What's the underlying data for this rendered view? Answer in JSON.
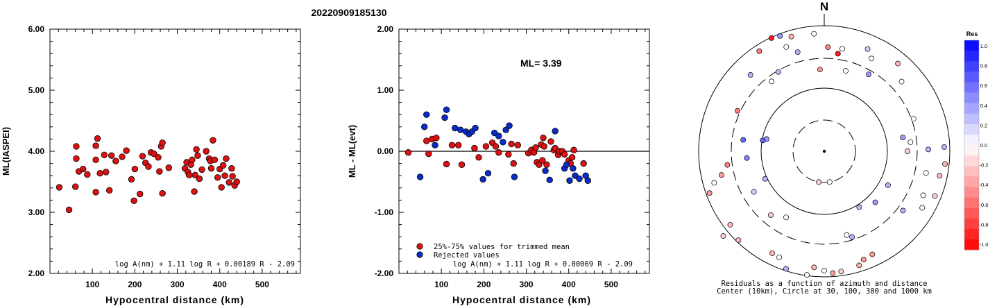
{
  "title": "20220909185130",
  "chart_data": [
    {
      "type": "scatter",
      "name": "ml-vs-distance",
      "xlabel": "Hypocentral distance (km)",
      "ylabel": "ML(IASPEI)",
      "xlim": [
        0,
        590
      ],
      "ylim": [
        2.0,
        6.0
      ],
      "xticks": [
        "100",
        "200",
        "300",
        "400",
        "500"
      ],
      "yticks": [
        "2.00",
        "3.00",
        "4.00",
        "5.00",
        "6.00"
      ],
      "formula": "log A(nm) + 1.11 log R + 0.00189 R - 2.09",
      "points": [
        [
          22,
          3.41
        ],
        [
          45,
          3.04
        ],
        [
          60,
          3.42
        ],
        [
          62,
          3.88
        ],
        [
          62,
          4.08
        ],
        [
          68,
          3.67
        ],
        [
          78,
          3.71
        ],
        [
          88,
          3.62
        ],
        [
          108,
          3.33
        ],
        [
          108,
          3.86
        ],
        [
          108,
          4.09
        ],
        [
          112,
          4.21
        ],
        [
          118,
          3.64
        ],
        [
          128,
          3.94
        ],
        [
          132,
          3.66
        ],
        [
          140,
          3.36
        ],
        [
          145,
          3.93
        ],
        [
          155,
          3.84
        ],
        [
          170,
          3.91
        ],
        [
          180,
          4.01
        ],
        [
          192,
          3.54
        ],
        [
          198,
          3.19
        ],
        [
          200,
          3.71
        ],
        [
          212,
          3.3
        ],
        [
          218,
          3.92
        ],
        [
          225,
          3.81
        ],
        [
          232,
          3.75
        ],
        [
          238,
          3.98
        ],
        [
          245,
          3.96
        ],
        [
          255,
          3.9
        ],
        [
          258,
          3.67
        ],
        [
          262,
          4.08
        ],
        [
          265,
          4.14
        ],
        [
          265,
          3.31
        ],
        [
          280,
          3.73
        ],
        [
          318,
          3.72
        ],
        [
          322,
          3.82
        ],
        [
          325,
          3.66
        ],
        [
          328,
          3.61
        ],
        [
          332,
          3.78
        ],
        [
          335,
          3.86
        ],
        [
          340,
          3.34
        ],
        [
          342,
          3.61
        ],
        [
          345,
          4.03
        ],
        [
          348,
          3.93
        ],
        [
          352,
          3.55
        ],
        [
          358,
          3.7
        ],
        [
          368,
          4.0
        ],
        [
          375,
          3.88
        ],
        [
          378,
          3.84
        ],
        [
          380,
          3.72
        ],
        [
          384,
          4.18
        ],
        [
          388,
          3.86
        ],
        [
          395,
          3.57
        ],
        [
          400,
          3.71
        ],
        [
          404,
          3.41
        ],
        [
          408,
          3.77
        ],
        [
          412,
          3.6
        ],
        [
          415,
          3.88
        ],
        [
          422,
          3.49
        ],
        [
          428,
          3.72
        ],
        [
          430,
          3.59
        ],
        [
          435,
          3.44
        ],
        [
          440,
          3.5
        ]
      ]
    },
    {
      "type": "scatter",
      "name": "residual-vs-distance",
      "xlabel": "Hypocentral distance (km)",
      "ylabel": "ML - ML(evt)",
      "xlim": [
        0,
        590
      ],
      "ylim": [
        -2.0,
        2.0
      ],
      "xticks": [
        "100",
        "200",
        "300",
        "400",
        "500"
      ],
      "yticks": [
        "-2.00",
        "-1.00",
        "0.00",
        "1.00",
        "2.00"
      ],
      "annotation": "ML= 3.39",
      "formula": "log A(nm) + 1.11 log R + 0.00069 R - 2.09",
      "legend": [
        "25%-75% values for trimmed mean",
        "Rejected values"
      ],
      "series": [
        {
          "name": "25%-75% values for trimmed mean",
          "color": "#dd1111",
          "points": [
            [
              22,
              -0.02
            ],
            [
              65,
              0.17
            ],
            [
              70,
              -0.04
            ],
            [
              78,
              0.2
            ],
            [
              88,
              0.22
            ],
            [
              112,
              -0.21
            ],
            [
              125,
              0.1
            ],
            [
              140,
              0.1
            ],
            [
              148,
              -0.22
            ],
            [
              178,
              0.05
            ],
            [
              188,
              -0.1
            ],
            [
              205,
              0.08
            ],
            [
              220,
              0.14
            ],
            [
              228,
              0.08
            ],
            [
              235,
              -0.02
            ],
            [
              258,
              -0.05
            ],
            [
              265,
              0.12
            ],
            [
              270,
              -0.2
            ],
            [
              280,
              0.1
            ],
            [
              305,
              -0.03
            ],
            [
              312,
              0.02
            ],
            [
              318,
              -0.02
            ],
            [
              322,
              0.06
            ],
            [
              325,
              -0.18
            ],
            [
              330,
              -0.22
            ],
            [
              335,
              0.11
            ],
            [
              338,
              -0.15
            ],
            [
              340,
              0.22
            ],
            [
              342,
              0.08
            ],
            [
              348,
              -0.22
            ],
            [
              358,
              0.16
            ],
            [
              365,
              0.02
            ],
            [
              368,
              0.05
            ],
            [
              375,
              -0.06
            ],
            [
              378,
              0.0
            ],
            [
              385,
              0.0
            ],
            [
              390,
              -0.05
            ],
            [
              400,
              -0.15
            ],
            [
              404,
              -0.2
            ],
            [
              408,
              -0.1
            ],
            [
              412,
              0.02
            ],
            [
              435,
              -0.2
            ]
          ]
        },
        {
          "name": "Rejected values",
          "color": "#0b2cc8",
          "points": [
            [
              50,
              -0.42
            ],
            [
              60,
              0.4
            ],
            [
              65,
              0.6
            ],
            [
              85,
              0.1
            ],
            [
              108,
              0.55
            ],
            [
              112,
              0.68
            ],
            [
              132,
              0.38
            ],
            [
              145,
              0.35
            ],
            [
              158,
              0.32
            ],
            [
              165,
              0.28
            ],
            [
              172,
              0.32
            ],
            [
              180,
              0.38
            ],
            [
              198,
              -0.46
            ],
            [
              210,
              -0.36
            ],
            [
              225,
              0.3
            ],
            [
              235,
              0.25
            ],
            [
              245,
              0.15
            ],
            [
              252,
              0.35
            ],
            [
              260,
              0.42
            ],
            [
              272,
              -0.42
            ],
            [
              345,
              -0.32
            ],
            [
              355,
              -0.47
            ],
            [
              368,
              0.33
            ],
            [
              390,
              -0.28
            ],
            [
              395,
              -0.22
            ],
            [
              402,
              -0.48
            ],
            [
              410,
              -0.28
            ],
            [
              415,
              -0.4
            ],
            [
              425,
              -0.45
            ],
            [
              440,
              -0.4
            ],
            [
              445,
              -0.48
            ]
          ]
        }
      ]
    },
    {
      "type": "scatter",
      "name": "azimuth-distance",
      "north_label": "N",
      "caption": [
        "Residuals as a function of azimuth and distance",
        "Center (10km), Circle at 30, 100, 300 and 1000 km"
      ],
      "colorbar": {
        "title": "Res",
        "ticks": [
          "1.0",
          "0.8",
          "0.6",
          "0.4",
          "0.2",
          "0.0",
          "-0.2",
          "-0.4",
          "-0.6",
          "-0.8",
          "-1.0"
        ],
        "positive_color": "#0000ff",
        "negative_color": "#ff0000"
      },
      "stations": [
        [
          -25,
          180,
          -0.9
        ],
        [
          -21,
          178,
          0.4
        ],
        [
          -16,
          172,
          -0.3
        ],
        [
          -5,
          170,
          0.0
        ],
        [
          -33,
          172,
          -0.5
        ],
        [
          -3,
          118,
          -0.4
        ],
        [
          -30,
          132,
          0.3
        ],
        [
          -37,
          126,
          0.0
        ],
        [
          -65,
          138,
          -0.5
        ],
        [
          -98,
          141,
          -0.5
        ],
        [
          -103,
          152,
          -0.4
        ],
        [
          -106,
          165,
          0.0
        ],
        [
          -110,
          176,
          -0.4
        ],
        [
          -128,
          172,
          -0.3
        ],
        [
          -136,
          178,
          -0.3
        ],
        [
          -130,
          190,
          -0.2
        ],
        [
          -153,
          165,
          -0.3
        ],
        [
          -157,
          166,
          0.0
        ],
        [
          -162,
          178,
          0.3
        ],
        [
          -172,
          180,
          0.0
        ],
        [
          -175,
          168,
          -0.3
        ],
        [
          -180,
          172,
          0.0
        ],
        [
          -184,
          176,
          -0.4
        ],
        [
          -188,
          175,
          -0.2
        ],
        [
          -197,
          172,
          -0.3
        ],
        [
          -200,
          166,
          -0.4
        ],
        [
          -205,
          164,
          -0.4
        ],
        [
          -195,
          125,
          0.0
        ],
        [
          -233,
          142,
          0.3
        ],
        [
          -240,
          163,
          0.0
        ],
        [
          -246,
          156,
          0.0
        ],
        [
          -248,
          172,
          -0.2
        ],
        [
          -258,
          150,
          0.0
        ],
        [
          -258,
          170,
          -0.3
        ],
        [
          -264,
          175,
          -0.3
        ],
        [
          -272,
          173,
          0.3
        ],
        [
          -271,
          150,
          0.3
        ],
        [
          -242,
          104,
          0.3
        ],
        [
          -270,
          120,
          -0.2
        ],
        [
          -276,
          125,
          0.0
        ],
        [
          -280,
          115,
          0.4
        ],
        [
          -290,
          137,
          0.0
        ],
        [
          -312,
          150,
          0.0
        ],
        [
          -320,
          165,
          -0.3
        ],
        [
          -330,
          128,
          0.4
        ],
        [
          -337,
          160,
          0.2
        ],
        [
          -333,
          150,
          0.0
        ],
        [
          -350,
          150,
          0.0
        ],
        [
          -358,
          150,
          -0.5
        ],
        [
          -15,
          148,
          0.3
        ],
        [
          -20,
          160,
          0.0
        ],
        [
          -44,
          153,
          0.3
        ],
        [
          -78,
          85,
          0.4
        ],
        [
          -80,
          90,
          0.6
        ],
        [
          -82,
          118,
          0.6
        ],
        [
          -95,
          112,
          0.5
        ],
        [
          -115,
          94,
          0.3
        ],
        [
          -120,
          117,
          0.2
        ],
        [
          -140,
          120,
          -0.2
        ],
        [
          -150,
          110,
          0.0
        ],
        [
          -170,
          45,
          -0.2
        ],
        [
          -190,
          45,
          0.0
        ],
        [
          -198,
          130,
          0.3
        ],
        [
          -212,
          95,
          0.3
        ],
        [
          -225,
          104,
          0.4
        ],
        [
          -345,
          120,
          0.0
        ],
        [
          -352,
          142,
          -0.9
        ]
      ]
    }
  ]
}
